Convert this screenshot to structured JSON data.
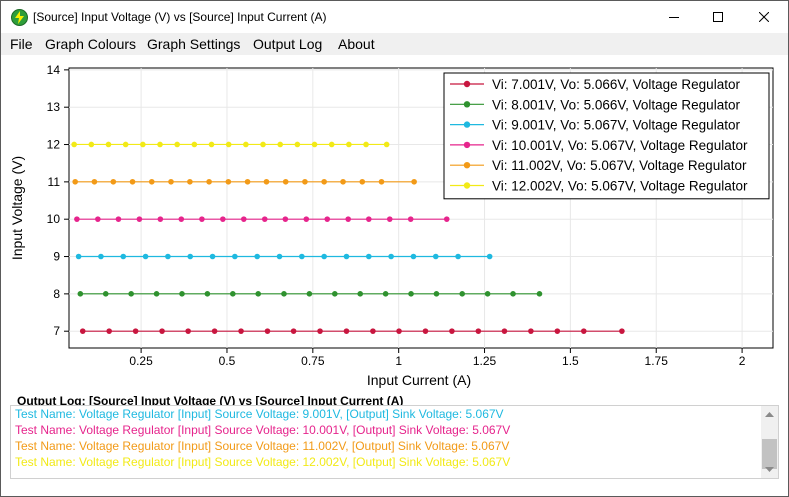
{
  "window": {
    "title": "[Source] Input Voltage (V) vs [Source] Input Current (A)",
    "icon": "lightning-icon"
  },
  "menu": [
    "File",
    "Graph Colours",
    "Graph Settings",
    "Output Log",
    "About"
  ],
  "chart_data": {
    "type": "line",
    "xlabel": "Input Current (A)",
    "ylabel": "Input Voltage (V)",
    "xlim": [
      0.04,
      2.09
    ],
    "ylim": [
      6.55,
      14.05
    ],
    "xticks": [
      0.25,
      0.5,
      0.75,
      1,
      1.25,
      1.5,
      1.75,
      2
    ],
    "xtick_labels": [
      "0.25",
      "0.5",
      "0.75",
      "1",
      "1.25",
      "1.5",
      "1.75",
      "2"
    ],
    "yticks": [
      7,
      8,
      9,
      10,
      11,
      12,
      13,
      14
    ],
    "ytick_labels": [
      "7",
      "8",
      "9",
      "10",
      "11",
      "12",
      "13",
      "14"
    ],
    "grid": true,
    "legend_position": "top-right",
    "series": [
      {
        "name": "Vi: 7.001V, Vo: 5.066V, Voltage Regulator",
        "color": "#c8163f",
        "y": 7.001,
        "x": [
          0.08,
          0.157,
          0.234,
          0.311,
          0.387,
          0.464,
          0.541,
          0.618,
          0.694,
          0.771,
          0.848,
          0.925,
          1.001,
          1.078,
          1.155,
          1.232,
          1.308,
          1.385,
          1.462,
          1.539,
          1.65
        ]
      },
      {
        "name": "Vi: 8.001V, Vo: 5.066V, Voltage Regulator",
        "color": "#2f922f",
        "y": 8.001,
        "x": [
          0.073,
          0.147,
          0.221,
          0.295,
          0.369,
          0.443,
          0.517,
          0.591,
          0.666,
          0.74,
          0.814,
          0.888,
          0.962,
          1.036,
          1.11,
          1.185,
          1.259,
          1.333,
          1.41
        ]
      },
      {
        "name": "Vi: 9.001V, Vo: 5.067V, Voltage Regulator",
        "color": "#1fb9e0",
        "y": 9.001,
        "x": [
          0.068,
          0.133,
          0.198,
          0.263,
          0.328,
          0.393,
          0.458,
          0.523,
          0.588,
          0.653,
          0.718,
          0.783,
          0.848,
          0.913,
          0.978,
          1.043,
          1.108,
          1.173,
          1.265
        ]
      },
      {
        "name": "Vi: 10.001V, Vo: 5.067V, Voltage Regulator",
        "color": "#e6248c",
        "y": 10.001,
        "x": [
          0.063,
          0.124,
          0.184,
          0.245,
          0.306,
          0.367,
          0.427,
          0.488,
          0.549,
          0.61,
          0.67,
          0.731,
          0.792,
          0.853,
          0.913,
          0.974,
          1.035,
          1.14
        ]
      },
      {
        "name": "Vi: 11.002V, Vo: 5.067V, Voltage Regulator",
        "color": "#f29a17",
        "y": 11.002,
        "x": [
          0.058,
          0.114,
          0.169,
          0.225,
          0.281,
          0.337,
          0.392,
          0.448,
          0.504,
          0.56,
          0.615,
          0.671,
          0.727,
          0.783,
          0.838,
          0.894,
          0.95,
          1.045
        ]
      },
      {
        "name": "Vi: 12.002V, Vo: 5.067V, Voltage Regulator",
        "color": "#f2ea17",
        "y": 12.002,
        "x": [
          0.055,
          0.105,
          0.155,
          0.205,
          0.255,
          0.305,
          0.355,
          0.405,
          0.455,
          0.505,
          0.555,
          0.605,
          0.655,
          0.705,
          0.755,
          0.805,
          0.855,
          0.905,
          0.965
        ]
      }
    ]
  },
  "output_log": {
    "title": "Output Log:  [Source] Input Voltage (V) vs [Source] Input Current (A)",
    "lines": [
      {
        "text": "Test Name: Voltage Regulator [Input] Source Voltage: 9.001V, [Output] Sink Voltage: 5.067V",
        "color": "#1fb9e0"
      },
      {
        "text": "Test Name: Voltage Regulator [Input] Source Voltage: 10.001V, [Output] Sink Voltage: 5.067V",
        "color": "#e6248c"
      },
      {
        "text": "Test Name: Voltage Regulator [Input] Source Voltage: 11.002V, [Output] Sink Voltage: 5.067V",
        "color": "#f29a17"
      },
      {
        "text": "Test Name: Voltage Regulator [Input] Source Voltage: 12.002V, [Output] Sink Voltage: 5.067V",
        "color": "#f2ea17"
      }
    ]
  }
}
